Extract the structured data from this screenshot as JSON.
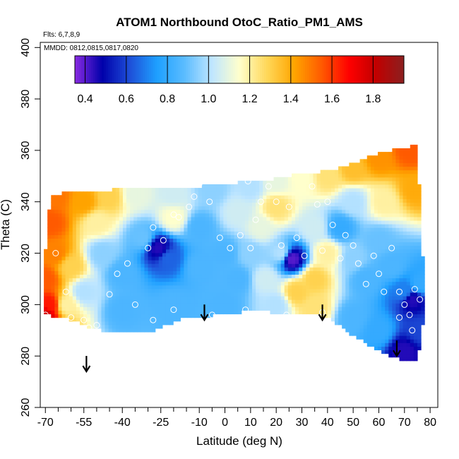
{
  "chart_data": {
    "type": "heatmap",
    "title": "ATOM1 Northbound OtoC_Ratio_PM1_AMS",
    "flights_label": "Flts: 6,7,8,9",
    "dates_label": "MMDD: 0812,0815,0817,0820",
    "xlabel": "Latitude (deg N)",
    "ylabel": "Theta (C)",
    "xlim": [
      -72,
      83
    ],
    "ylim": [
      260,
      402
    ],
    "x_tick_labels": [
      "-70",
      "-55",
      "-40",
      "-25",
      "-10",
      "0",
      "10",
      "20",
      "30",
      "40",
      "50",
      "60",
      "70",
      "80"
    ],
    "x_tick_values": [
      -70,
      -55,
      -40,
      -25,
      -10,
      0,
      10,
      20,
      30,
      40,
      50,
      60,
      70,
      80
    ],
    "x_minor_ticks": [
      -65,
      -60,
      -50,
      -45,
      -35,
      -30,
      -20,
      -15,
      -5,
      5,
      15,
      25,
      35,
      45,
      55,
      65,
      75
    ],
    "y_tick_labels": [
      "260",
      "280",
      "300",
      "320",
      "340",
      "360",
      "380",
      "400"
    ],
    "y_tick_values": [
      260,
      280,
      300,
      320,
      340,
      360,
      380,
      400
    ],
    "colorbar": {
      "range": [
        0.35,
        1.95
      ],
      "tick_labels": [
        "0.4",
        "0.6",
        "0.8",
        "1.0",
        "1.2",
        "1.4",
        "1.6",
        "1.8"
      ],
      "tick_values": [
        0.4,
        0.6,
        0.8,
        1.0,
        1.2,
        1.4,
        1.6,
        1.8
      ],
      "colors": [
        "#8a2be2",
        "#0000aa",
        "#1e4fd8",
        "#1ea0ff",
        "#5bbcff",
        "#bfe6ff",
        "#ffffcc",
        "#ffd85a",
        "#ffa500",
        "#ff5a00",
        "#ff0000",
        "#c00000",
        "#8b2020"
      ]
    },
    "field_outline": [
      [
        -70,
        296
      ],
      [
        -71,
        310
      ],
      [
        -69,
        330
      ],
      [
        -68,
        343
      ],
      [
        -55,
        344
      ],
      [
        -40,
        345
      ],
      [
        -25,
        346
      ],
      [
        -10,
        346
      ],
      [
        0,
        347
      ],
      [
        10,
        348
      ],
      [
        20,
        349
      ],
      [
        30,
        351
      ],
      [
        40,
        352
      ],
      [
        50,
        355
      ],
      [
        60,
        359
      ],
      [
        70,
        361
      ],
      [
        75,
        362
      ],
      [
        76,
        340
      ],
      [
        77,
        320
      ],
      [
        78,
        305
      ],
      [
        77,
        290
      ],
      [
        75,
        278
      ],
      [
        70,
        278
      ],
      [
        60,
        282
      ],
      [
        50,
        288
      ],
      [
        40,
        295
      ],
      [
        35,
        296
      ],
      [
        25,
        296
      ],
      [
        12,
        298
      ],
      [
        0,
        296
      ],
      [
        -15,
        295
      ],
      [
        -30,
        289
      ],
      [
        -45,
        289
      ],
      [
        -55,
        292
      ],
      [
        -62,
        295
      ]
    ],
    "field_samples": [
      [
        -70,
        296,
        1.78
      ],
      [
        -68,
        300,
        1.65
      ],
      [
        -70,
        310,
        1.55
      ],
      [
        -66,
        320,
        1.48
      ],
      [
        -68,
        332,
        1.55
      ],
      [
        -66,
        342,
        1.5
      ],
      [
        -55,
        340,
        1.42
      ],
      [
        -45,
        342,
        1.3
      ],
      [
        -35,
        343,
        1.1
      ],
      [
        -20,
        343,
        1.05
      ],
      [
        -5,
        345,
        0.95
      ],
      [
        10,
        346,
        1.0
      ],
      [
        20,
        348,
        1.1
      ],
      [
        30,
        349,
        1.15
      ],
      [
        40,
        350,
        1.25
      ],
      [
        50,
        353,
        1.35
      ],
      [
        60,
        357,
        1.45
      ],
      [
        72,
        360,
        1.55
      ],
      [
        74,
        345,
        1.4
      ],
      [
        -60,
        315,
        1.3
      ],
      [
        -55,
        305,
        1.0
      ],
      [
        -62,
        300,
        1.2
      ],
      [
        -48,
        320,
        0.95
      ],
      [
        -40,
        312,
        0.85
      ],
      [
        -32,
        326,
        0.9
      ],
      [
        -26,
        322,
        0.45
      ],
      [
        -22,
        318,
        0.65
      ],
      [
        -10,
        330,
        0.85
      ],
      [
        0,
        320,
        0.85
      ],
      [
        5,
        310,
        0.85
      ],
      [
        10,
        320,
        0.95
      ],
      [
        14,
        330,
        1.1
      ],
      [
        16,
        310,
        1.05
      ],
      [
        20,
        338,
        1.25
      ],
      [
        22,
        320,
        1.0
      ],
      [
        26,
        318,
        0.4
      ],
      [
        28,
        305,
        1.3
      ],
      [
        35,
        310,
        1.3
      ],
      [
        35,
        330,
        1.05
      ],
      [
        40,
        320,
        1.2
      ],
      [
        45,
        330,
        0.8
      ],
      [
        50,
        318,
        0.95
      ],
      [
        55,
        310,
        0.85
      ],
      [
        60,
        325,
        0.9
      ],
      [
        65,
        315,
        0.85
      ],
      [
        70,
        305,
        0.7
      ],
      [
        73,
        302,
        0.45
      ],
      [
        76,
        308,
        0.8
      ],
      [
        -40,
        298,
        0.85
      ],
      [
        -20,
        300,
        0.85
      ],
      [
        0,
        300,
        0.85
      ],
      [
        20,
        300,
        1.0
      ],
      [
        35,
        299,
        1.25
      ],
      [
        50,
        295,
        0.85
      ],
      [
        60,
        290,
        0.8
      ],
      [
        70,
        282,
        0.45
      ],
      [
        76,
        290,
        0.6
      ],
      [
        -10,
        315,
        0.85
      ],
      [
        -50,
        332,
        1.2
      ],
      [
        -20,
        334,
        1.15
      ],
      [
        5,
        336,
        1.05
      ],
      [
        62,
        340,
        1.2
      ],
      [
        50,
        340,
        1.0
      ]
    ],
    "sample_points": [
      [
        -70,
        296
      ],
      [
        -60,
        295
      ],
      [
        -55,
        294
      ],
      [
        -53,
        291
      ],
      [
        -50,
        292
      ],
      [
        -45,
        304
      ],
      [
        -42,
        312
      ],
      [
        -38,
        316
      ],
      [
        -30,
        322
      ],
      [
        -28,
        330
      ],
      [
        -24,
        325
      ],
      [
        -20,
        335
      ],
      [
        -18,
        334
      ],
      [
        -14,
        338
      ],
      [
        -12,
        342
      ],
      [
        -10,
        347
      ],
      [
        -6,
        340
      ],
      [
        -2,
        326
      ],
      [
        2,
        322
      ],
      [
        6,
        327
      ],
      [
        9,
        348
      ],
      [
        10,
        322
      ],
      [
        12,
        333
      ],
      [
        14,
        340
      ],
      [
        17,
        346
      ],
      [
        20,
        340
      ],
      [
        22,
        323
      ],
      [
        25,
        338
      ],
      [
        28,
        326
      ],
      [
        31,
        319
      ],
      [
        34,
        346
      ],
      [
        36,
        339
      ],
      [
        38,
        321
      ],
      [
        40,
        340
      ],
      [
        42,
        331
      ],
      [
        45,
        318
      ],
      [
        47,
        327
      ],
      [
        50,
        323
      ],
      [
        52,
        316
      ],
      [
        55,
        308
      ],
      [
        58,
        319
      ],
      [
        60,
        312
      ],
      [
        62,
        305
      ],
      [
        65,
        322
      ],
      [
        68,
        305
      ],
      [
        70,
        300
      ],
      [
        72,
        296
      ],
      [
        74,
        306
      ],
      [
        76,
        302
      ],
      [
        73,
        290
      ],
      [
        -35,
        300
      ],
      [
        -20,
        298
      ],
      [
        -5,
        296
      ],
      [
        8,
        298
      ],
      [
        24,
        296
      ],
      [
        38,
        297
      ],
      [
        -66,
        320
      ],
      [
        -62,
        305
      ],
      [
        -28,
        294
      ],
      [
        68,
        295
      ]
    ],
    "arrows": [
      {
        "lat": -54,
        "theta": 274
      },
      {
        "lat": -8,
        "theta": 294
      },
      {
        "lat": 38,
        "theta": 294
      },
      {
        "lat": 67,
        "theta": 280
      }
    ]
  }
}
